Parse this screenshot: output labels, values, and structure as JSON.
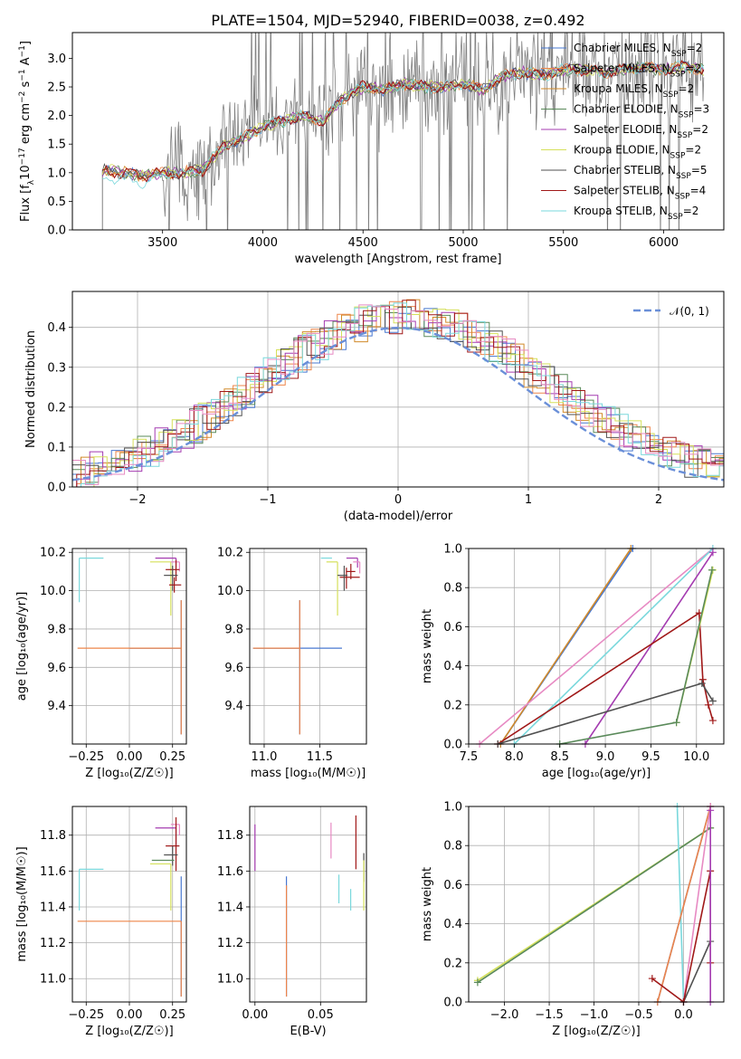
{
  "colors": [
    "#4878d0",
    "#ee854a",
    "#d18a2a",
    "#5a8a5a",
    "#a43bb0",
    "#d5e05a",
    "#505050",
    "#a01818",
    "#7ad8dc",
    "#e78ac3"
  ],
  "chart_data": [
    {
      "id": "spectrum",
      "type": "line",
      "title": "PLATE=1504, MJD=52940, FIBERID=0038, z=0.492",
      "xlabel": "wavelength [Angstrom, rest frame]",
      "ylabel": "Flux [f$_\\lambda$10$^{-17}$ erg cm$^{-2}$ s$^{-1}$ A$^{-1}$]",
      "ylabel_parts": {
        "a": "Flux [f",
        "b": "λ",
        "c": "10",
        "d": "−17",
        "e": " erg cm",
        "f": "−2",
        "g": " s",
        "h": "−1",
        "i": " A",
        "j": "−1",
        "k": "]"
      },
      "xlim": [
        3050,
        6300
      ],
      "ylim": [
        0,
        3.45
      ],
      "xticks": [
        "3500",
        "4000",
        "4500",
        "5000",
        "5500",
        "6000"
      ],
      "xtick_values": [
        3500,
        4000,
        4500,
        5000,
        5500,
        6000
      ],
      "yticks": [
        "0.0",
        "0.5",
        "1.0",
        "1.5",
        "2.0",
        "2.5",
        "3.0"
      ],
      "ytick_values": [
        0,
        0.5,
        1.0,
        1.5,
        2.0,
        2.5,
        3.0
      ],
      "legend_position": "top-right",
      "legend": [
        {
          "a": "Chabrier MILES, N",
          "b": "SSP",
          "c": "=2"
        },
        {
          "a": "Salpeter MILES, N",
          "b": "SSP",
          "c": "=2"
        },
        {
          "a": "Kroupa MILES, N",
          "b": "SSP",
          "c": "=2"
        },
        {
          "a": "Chabrier ELODIE, N",
          "b": "SSP",
          "c": "=3"
        },
        {
          "a": "Salpeter ELODIE, N",
          "b": "SSP",
          "c": "=2"
        },
        {
          "a": "Kroupa ELODIE, N",
          "b": "SSP",
          "c": "=2"
        },
        {
          "a": "Chabrier STELIB, N",
          "b": "SSP",
          "c": "=5"
        },
        {
          "a": "Salpeter STELIB, N",
          "b": "SSP",
          "c": "=4"
        },
        {
          "a": "Kroupa STELIB, N",
          "b": "SSP",
          "c": "=2"
        }
      ],
      "legend_colors": [
        "#4878d0",
        "#ee854a",
        "#d18a2a",
        "#5a8a5a",
        "#a43bb0",
        "#d5e05a",
        "#505050",
        "#a01818",
        "#7ad8dc"
      ],
      "model_knots": {
        "x": [
          3200,
          3300,
          3400,
          3500,
          3600,
          3700,
          3800,
          3900,
          4000,
          4100,
          4200,
          4300,
          4400,
          4500,
          4600,
          4700,
          4800,
          4900,
          5000,
          5100,
          5200,
          5300,
          5400,
          5500,
          5600,
          5700,
          5800,
          5900,
          6000,
          6100,
          6200
        ],
        "y": [
          1.05,
          1.0,
          0.95,
          1.0,
          1.0,
          1.05,
          1.45,
          1.6,
          1.8,
          1.9,
          2.0,
          1.9,
          2.3,
          2.5,
          2.45,
          2.55,
          2.5,
          2.5,
          2.55,
          2.45,
          2.7,
          2.75,
          2.7,
          2.8,
          2.8,
          2.75,
          2.8,
          2.85,
          2.8,
          2.85,
          2.8
        ]
      },
      "data_color": "#808080"
    },
    {
      "id": "residuals",
      "type": "histogram",
      "xlabel": "(data-model)/error",
      "ylabel": "Normed distribution",
      "xlim": [
        -2.5,
        2.5
      ],
      "ylim": [
        0,
        0.49
      ],
      "xticks": [
        "−2",
        "−1",
        "0",
        "1",
        "2"
      ],
      "xtick_values": [
        -2,
        -1,
        0,
        1,
        2
      ],
      "yticks": [
        "0.0",
        "0.1",
        "0.2",
        "0.3",
        "0.4"
      ],
      "ytick_values": [
        0,
        0.1,
        0.2,
        0.3,
        0.4
      ],
      "legend_position": "top-right",
      "legend": [
        {
          "name": "𝒩(0, 1)"
        }
      ],
      "gauss_color": "#6a8fd8",
      "bin_width": 0.1
    },
    {
      "id": "age_vs_Z",
      "type": "errorbar",
      "xlabel": "Z [log₁₀(Z/Z☉)]",
      "ylabel": "age  [log₁₀(age/yr)]",
      "xlim": [
        -0.33,
        0.33
      ],
      "ylim": [
        9.2,
        10.22
      ],
      "xticks": [
        "−0.25",
        "0.00",
        "0.25"
      ],
      "xtick_values": [
        -0.25,
        0,
        0.25
      ],
      "yticks": [
        "9.4",
        "9.6",
        "9.8",
        "10.0",
        "10.2"
      ],
      "ytick_values": [
        9.4,
        9.6,
        9.8,
        10.0,
        10.2
      ],
      "points": [
        {
          "c": 0,
          "x": 0.3,
          "y": 9.7,
          "xl": 0.3,
          "xh": 0.0,
          "yl": 0.45,
          "yh": 0.25
        },
        {
          "c": 1,
          "x": 0.3,
          "y": 9.7,
          "xl": 0.6,
          "xh": 0.0,
          "yl": 0.45,
          "yh": 0.25
        },
        {
          "c": 8,
          "x": -0.29,
          "y": 10.17,
          "xl": 0.0,
          "xh": 0.14,
          "yl": 0.23,
          "yh": 0.0
        },
        {
          "c": 5,
          "x": 0.24,
          "y": 10.15,
          "xl": 0.12,
          "xh": 0.0,
          "yl": 0.28,
          "yh": 0.0
        },
        {
          "c": 4,
          "x": 0.27,
          "y": 10.17,
          "xl": 0.12,
          "xh": 0.0,
          "yl": 0.05,
          "yh": 0.0
        },
        {
          "c": 9,
          "x": 0.29,
          "y": 10.15,
          "xl": 0.05,
          "xh": 0.0,
          "yl": 0.05,
          "yh": 0.0
        },
        {
          "c": 7,
          "x": 0.27,
          "y": 10.11,
          "xl": 0.06,
          "xh": 0.02,
          "yl": 0.06,
          "yh": 0.05
        },
        {
          "c": 6,
          "x": 0.25,
          "y": 10.08,
          "xl": 0.05,
          "xh": 0.03,
          "yl": 0.08,
          "yh": 0.05
        },
        {
          "c": 7,
          "x": 0.26,
          "y": 10.03,
          "xl": 0.03,
          "xh": 0.04,
          "yl": 0.04,
          "yh": 0.04
        }
      ]
    },
    {
      "id": "age_vs_mass",
      "type": "errorbar",
      "xlabel": "mass [log₁₀(M/M☉)]",
      "ylabel": "",
      "xlim": [
        10.87,
        11.92
      ],
      "ylim": [
        9.2,
        10.22
      ],
      "xticks": [
        "11.0",
        "11.5"
      ],
      "xtick_values": [
        11.0,
        11.5
      ],
      "yticks": [
        "9.4",
        "9.6",
        "9.8",
        "10.0",
        "10.2"
      ],
      "ytick_values": [
        9.4,
        9.6,
        9.8,
        10.0,
        10.2
      ],
      "points": [
        {
          "c": 0,
          "x": 11.32,
          "y": 9.7,
          "xl": 0.42,
          "xh": 0.38,
          "yl": 0.45,
          "yh": 0.25
        },
        {
          "c": 1,
          "x": 11.32,
          "y": 9.7,
          "xl": 0.42,
          "xh": 0.0,
          "yl": 0.45,
          "yh": 0.25
        },
        {
          "c": 8,
          "x": 11.61,
          "y": 10.17,
          "xl": 0.1,
          "xh": 0.0,
          "yl": 0.0,
          "yh": 0.0
        },
        {
          "c": 5,
          "x": 11.66,
          "y": 10.15,
          "xl": 0.1,
          "xh": 0.0,
          "yl": 0.28,
          "yh": 0.0
        },
        {
          "c": 4,
          "x": 11.84,
          "y": 10.17,
          "xl": 0.1,
          "xh": 0.0,
          "yl": 0.05,
          "yh": 0.0
        },
        {
          "c": 9,
          "x": 11.86,
          "y": 10.15,
          "xl": 0.06,
          "xh": 0.0,
          "yl": 0.06,
          "yh": 0.0
        },
        {
          "c": 7,
          "x": 11.74,
          "y": 10.07,
          "xl": 0.06,
          "xh": 0.12,
          "yl": 0.06,
          "yh": 0.05
        },
        {
          "c": 6,
          "x": 11.72,
          "y": 10.08,
          "xl": 0.06,
          "xh": 0.03,
          "yl": 0.08,
          "yh": 0.05
        },
        {
          "c": 7,
          "x": 11.78,
          "y": 10.1,
          "xl": 0.04,
          "xh": 0.04,
          "yl": 0.04,
          "yh": 0.04
        }
      ]
    },
    {
      "id": "weight_vs_age",
      "type": "line",
      "xlabel": "age  [log₁₀(age/yr)]",
      "ylabel": "mass weight",
      "xlim": [
        7.5,
        10.3
      ],
      "ylim": [
        0,
        1.0
      ],
      "xticks": [
        "7.5",
        "8.0",
        "8.5",
        "9.0",
        "9.5",
        "10.0"
      ],
      "xtick_values": [
        7.5,
        8.0,
        8.5,
        9.0,
        9.5,
        10.0
      ],
      "yticks": [
        "0.0",
        "0.2",
        "0.4",
        "0.6",
        "0.8",
        "1.0"
      ],
      "ytick_values": [
        0,
        0.2,
        0.4,
        0.6,
        0.8,
        1.0
      ],
      "series": [
        {
          "c": 0,
          "x": [
            7.85,
            9.3
          ],
          "y": [
            0.0,
            1.0
          ]
        },
        {
          "c": 2,
          "x": [
            7.85,
            9.28
          ],
          "y": [
            0.0,
            1.0
          ]
        },
        {
          "c": 9,
          "x": [
            7.62,
            10.18
          ],
          "y": [
            0.0,
            1.0
          ]
        },
        {
          "c": 8,
          "x": [
            8.0,
            10.18
          ],
          "y": [
            0.0,
            1.0
          ]
        },
        {
          "c": 4,
          "x": [
            8.78,
            10.18
          ],
          "y": [
            0.0,
            0.98
          ]
        },
        {
          "c": 7,
          "x": [
            7.82,
            10.03,
            10.07,
            10.13,
            10.18
          ],
          "y": [
            0.0,
            0.67,
            0.33,
            0.2,
            0.12
          ]
        },
        {
          "c": 6,
          "x": [
            7.82,
            10.06,
            10.18
          ],
          "y": [
            0.0,
            0.31,
            0.22
          ]
        },
        {
          "c": 5,
          "x": [
            9.78,
            10.18
          ],
          "y": [
            0.11,
            0.89
          ]
        },
        {
          "c": 3,
          "x": [
            8.5,
            9.78,
            10.17
          ],
          "y": [
            0.0,
            0.11,
            0.89
          ]
        }
      ]
    },
    {
      "id": "mass_vs_Z",
      "type": "errorbar",
      "xlabel": "Z [log₁₀(Z/Z☉)]",
      "ylabel": "mass [log₁₀(M/M☉)]",
      "xlim": [
        -0.33,
        0.33
      ],
      "ylim": [
        10.87,
        11.96
      ],
      "xticks": [
        "−0.25",
        "0.00",
        "0.25"
      ],
      "xtick_values": [
        -0.25,
        0,
        0.25
      ],
      "yticks": [
        "11.0",
        "11.2",
        "11.4",
        "11.6",
        "11.8"
      ],
      "ytick_values": [
        11.0,
        11.2,
        11.4,
        11.6,
        11.8
      ],
      "points": [
        {
          "c": 0,
          "x": 0.3,
          "y": 11.32,
          "xl": 0.0,
          "xh": 0.0,
          "yl": 0.42,
          "yh": 0.25
        },
        {
          "c": 1,
          "x": 0.3,
          "y": 11.32,
          "xl": 0.6,
          "xh": 0.0,
          "yl": 0.42,
          "yh": 0.0
        },
        {
          "c": 8,
          "x": -0.29,
          "y": 11.61,
          "xl": 0.0,
          "xh": 0.14,
          "yl": 0.23,
          "yh": 0.0
        },
        {
          "c": 5,
          "x": 0.24,
          "y": 11.64,
          "xl": 0.12,
          "xh": 0.0,
          "yl": 0.26,
          "yh": 0.0
        },
        {
          "c": 4,
          "x": 0.27,
          "y": 11.84,
          "xl": 0.12,
          "xh": 0.0,
          "yl": 0.1,
          "yh": 0.02
        },
        {
          "c": 9,
          "x": 0.29,
          "y": 11.86,
          "xl": 0.05,
          "xh": 0.0,
          "yl": 0.06,
          "yh": 0.0
        },
        {
          "c": 7,
          "x": 0.27,
          "y": 11.74,
          "xl": 0.06,
          "xh": 0.02,
          "yl": 0.14,
          "yh": 0.16
        },
        {
          "c": 6,
          "x": 0.25,
          "y": 11.69,
          "xl": 0.05,
          "xh": 0.03,
          "yl": 0.06,
          "yh": 0.05
        },
        {
          "c": 3,
          "x": 0.21,
          "y": 11.66,
          "xl": 0.08,
          "xh": 0.05,
          "yl": 0.0,
          "yh": 0.0
        }
      ]
    },
    {
      "id": "mass_vs_ebv",
      "type": "errorbar",
      "xlabel": "E(B-V)",
      "ylabel": "",
      "xlim": [
        -0.004,
        0.085
      ],
      "ylim": [
        10.87,
        11.96
      ],
      "xticks": [
        "0.00",
        "0.05"
      ],
      "xtick_values": [
        0,
        0.05
      ],
      "yticks": [
        "11.0",
        "11.2",
        "11.4",
        "11.6",
        "11.8"
      ],
      "ytick_values": [
        11.0,
        11.2,
        11.4,
        11.6,
        11.8
      ],
      "points": [
        {
          "c": 0,
          "x": 0.024,
          "y": 11.32,
          "xl": 0.0,
          "xh": 0.0,
          "yl": 0.42,
          "yh": 0.25
        },
        {
          "c": 1,
          "x": 0.024,
          "y": 11.32,
          "xl": 0.0,
          "xh": 0.0,
          "yl": 0.42,
          "yh": 0.2
        },
        {
          "c": 4,
          "x": 0.0,
          "y": 11.76,
          "xl": 0.0,
          "xh": 0.0,
          "yl": 0.16,
          "yh": 0.1
        },
        {
          "c": 9,
          "x": 0.058,
          "y": 11.77,
          "xl": 0.0,
          "xh": 0.0,
          "yl": 0.1,
          "yh": 0.1
        },
        {
          "c": 8,
          "x": 0.064,
          "y": 11.5,
          "xl": 0.0,
          "xh": 0.0,
          "yl": 0.08,
          "yh": 0.08
        },
        {
          "c": 8,
          "x": 0.073,
          "y": 11.44,
          "xl": 0.0,
          "xh": 0.0,
          "yl": 0.06,
          "yh": 0.06
        },
        {
          "c": 7,
          "x": 0.077,
          "y": 11.76,
          "xl": 0.0,
          "xh": 0.0,
          "yl": 0.15,
          "yh": 0.15
        },
        {
          "c": 6,
          "x": 0.083,
          "y": 11.62,
          "xl": 0.0,
          "xh": 0.0,
          "yl": 0.08,
          "yh": 0.08
        },
        {
          "c": 5,
          "x": 0.083,
          "y": 11.52,
          "xl": 0.0,
          "xh": 0.0,
          "yl": 0.14,
          "yh": 0.14
        }
      ]
    },
    {
      "id": "weight_vs_Z",
      "type": "line",
      "xlabel": "Z [log₁₀(Z/Z☉)]",
      "ylabel": "mass weight",
      "xlim": [
        -2.4,
        0.45
      ],
      "ylim": [
        0,
        1.0
      ],
      "xticks": [
        "−2.0",
        "−1.5",
        "−1.0",
        "−0.5",
        "0.0"
      ],
      "xtick_values": [
        -2.0,
        -1.5,
        -1.0,
        -0.5,
        0.0
      ],
      "yticks": [
        "0.0",
        "0.2",
        "0.4",
        "0.6",
        "0.8",
        "1.0"
      ],
      "ytick_values": [
        0,
        0.2,
        0.4,
        0.6,
        0.8,
        1.0
      ],
      "series": [
        {
          "c": 5,
          "x": [
            -2.3,
            0.3
          ],
          "y": [
            0.11,
            0.89
          ]
        },
        {
          "c": 3,
          "x": [
            -2.3,
            0.3
          ],
          "y": [
            0.1,
            0.89
          ]
        },
        {
          "c": 8,
          "x": [
            -0.07,
            0.0
          ],
          "y": [
            1.0,
            0.0
          ]
        },
        {
          "c": 0,
          "x": [
            -0.29,
            0.3
          ],
          "y": [
            0.0,
            1.0
          ]
        },
        {
          "c": 1,
          "x": [
            -0.29,
            0.3
          ],
          "y": [
            0.0,
            1.0
          ]
        },
        {
          "c": 9,
          "x": [
            0.0,
            0.3
          ],
          "y": [
            0.0,
            1.0
          ]
        },
        {
          "c": 6,
          "x": [
            0.0,
            0.3
          ],
          "y": [
            0.0,
            0.31
          ]
        },
        {
          "c": 7,
          "x": [
            -0.35,
            0.0,
            0.3,
            0.3
          ],
          "y": [
            0.12,
            0.0,
            0.67,
            0.2
          ]
        },
        {
          "c": 4,
          "x": [
            0.3,
            0.3
          ],
          "y": [
            0.0,
            0.98
          ]
        }
      ]
    }
  ]
}
